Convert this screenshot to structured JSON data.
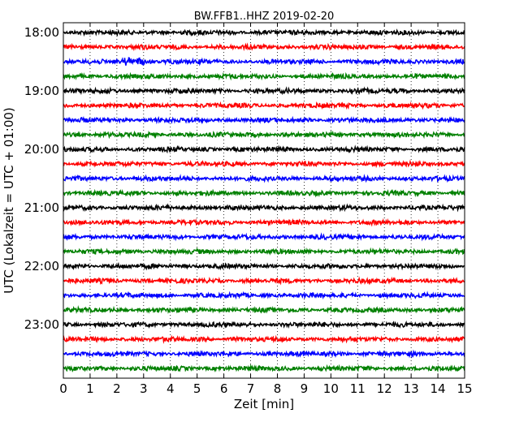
{
  "chart_data": {
    "type": "line",
    "title": "BW.FFB1..HHZ 2019-02-20",
    "xlabel": "Zeit  [min]",
    "ylabel": "UTC (Lokalzeit = UTC + 01:00)",
    "xlim": [
      0,
      15
    ],
    "x_ticks": [
      "0",
      "1",
      "2",
      "3",
      "4",
      "5",
      "6",
      "7",
      "8",
      "9",
      "10",
      "11",
      "12",
      "13",
      "14",
      "15"
    ],
    "y_tick_labels": [
      "18:00",
      "19:00",
      "20:00",
      "21:00",
      "22:00",
      "23:00"
    ],
    "grid": "vertical dotted",
    "row_interval_minutes": 15,
    "start_time": "18:00",
    "row_colors": [
      "#000000",
      "#ff0000",
      "#0000ff",
      "#008000"
    ],
    "rows": [
      {
        "time": "18:00"
      },
      {
        "time": "18:15"
      },
      {
        "time": "18:30",
        "event": [
          2.0,
          4.3
        ]
      },
      {
        "time": "18:45"
      },
      {
        "time": "19:00"
      },
      {
        "time": "19:15"
      },
      {
        "time": "19:30"
      },
      {
        "time": "19:45"
      },
      {
        "time": "20:00"
      },
      {
        "time": "20:15"
      },
      {
        "time": "20:30"
      },
      {
        "time": "20:45"
      },
      {
        "time": "21:00"
      },
      {
        "time": "21:15"
      },
      {
        "time": "21:30"
      },
      {
        "time": "21:45"
      },
      {
        "time": "22:00"
      },
      {
        "time": "22:15"
      },
      {
        "time": "22:30"
      },
      {
        "time": "22:45"
      },
      {
        "time": "23:00"
      },
      {
        "time": "23:15"
      },
      {
        "time": "23:30"
      },
      {
        "time": "23:45"
      }
    ]
  }
}
